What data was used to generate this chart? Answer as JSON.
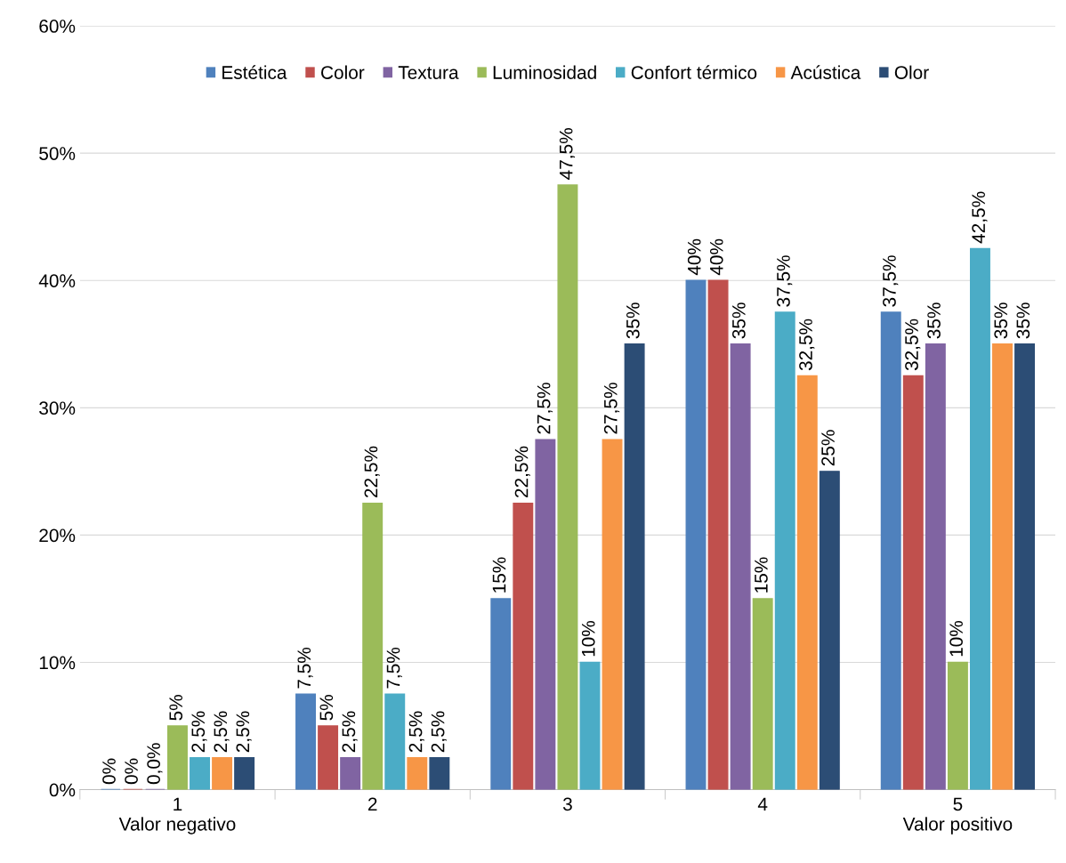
{
  "chart_data": {
    "type": "bar",
    "categories": [
      "1\nValor negativo",
      "2",
      "3",
      "4",
      "5\nValor positivo"
    ],
    "ylim": [
      0,
      60
    ],
    "yticks": [
      {
        "value": 0,
        "label": "0%"
      },
      {
        "value": 10,
        "label": "10%"
      },
      {
        "value": 20,
        "label": "20%"
      },
      {
        "value": 30,
        "label": "30%"
      },
      {
        "value": 40,
        "label": "40%"
      },
      {
        "value": 50,
        "label": "50%"
      },
      {
        "value": 60,
        "label": "60%"
      }
    ],
    "grid": "y",
    "legend": "top",
    "series": [
      {
        "name": "Estética",
        "color": "#4f81bd",
        "values": [
          0,
          7.5,
          15,
          40,
          37.5
        ],
        "value_labels": [
          "0%",
          "7,5%",
          "15%",
          "40%",
          "37,5%"
        ]
      },
      {
        "name": "Color",
        "color": "#c0504d",
        "values": [
          0,
          5,
          22.5,
          40,
          32.5
        ],
        "value_labels": [
          "0%",
          "5%",
          "22,5%",
          "40%",
          "32,5%"
        ]
      },
      {
        "name": "Textura",
        "color": "#8064a2",
        "values": [
          0,
          2.5,
          27.5,
          35,
          35
        ],
        "value_labels": [
          "0,0%",
          "2,5%",
          "27,5%",
          "35%",
          "35%"
        ]
      },
      {
        "name": "Luminosidad",
        "color": "#9bbb59",
        "values": [
          5,
          22.5,
          47.5,
          15,
          10
        ],
        "value_labels": [
          "5%",
          "22,5%",
          "47,5%",
          "15%",
          "10%"
        ]
      },
      {
        "name": "Confort térmico",
        "color": "#4bacc6",
        "values": [
          2.5,
          7.5,
          10,
          37.5,
          42.5
        ],
        "value_labels": [
          "2,5%",
          "7,5%",
          "10%",
          "37,5%",
          "42,5%"
        ]
      },
      {
        "name": "Acústica",
        "color": "#f79646",
        "values": [
          2.5,
          2.5,
          27.5,
          32.5,
          35
        ],
        "value_labels": [
          "2,5%",
          "2,5%",
          "27,5%",
          "32,5%",
          "35%"
        ]
      },
      {
        "name": "Olor",
        "color": "#2c4d75",
        "values": [
          2.5,
          2.5,
          35,
          25,
          35
        ],
        "value_labels": [
          "2,5%",
          "2,5%",
          "35%",
          "25%",
          "35%"
        ]
      }
    ]
  }
}
